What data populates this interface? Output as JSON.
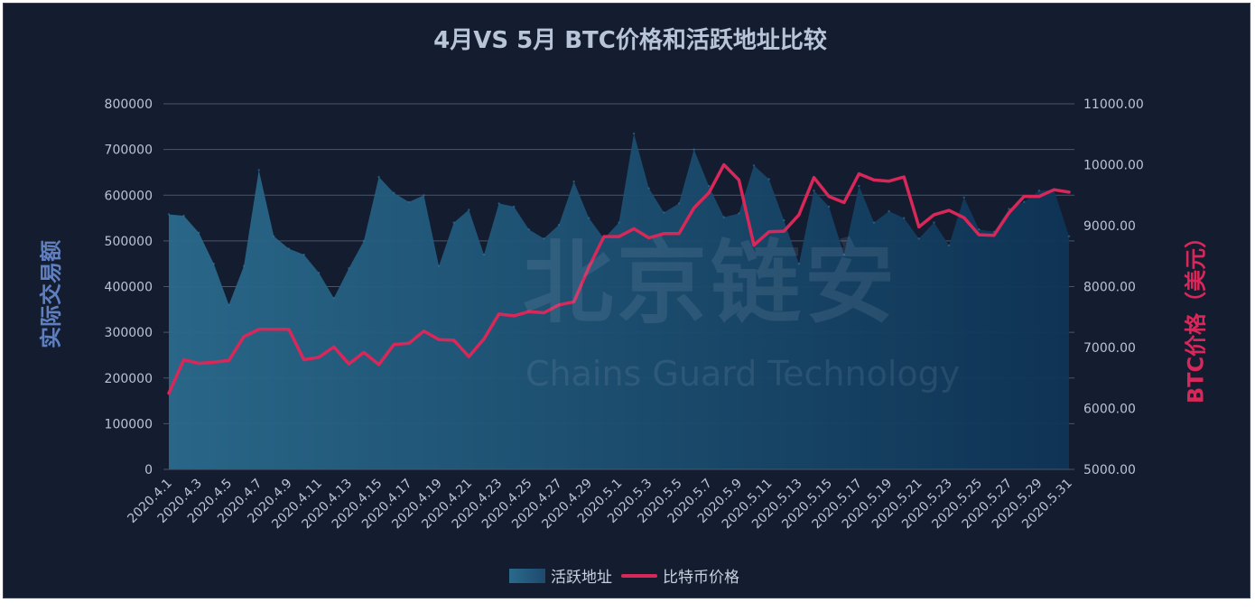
{
  "chart_data": {
    "type": "area",
    "title": "4月VS 5月 BTC价格和活跃地址比较",
    "ylabel_left": "实际交易额",
    "ylabel_right": "BTC价格（美元）",
    "ylim_left": [
      0,
      800000
    ],
    "ylim_right": [
      5000,
      11000
    ],
    "y_ticks_left": [
      "800000",
      "700000",
      "600000",
      "500000",
      "400000",
      "300000",
      "200000",
      "100000",
      "0"
    ],
    "y_ticks_right": [
      "11000.00",
      "10000.00",
      "9000.00",
      "8000.00",
      "7000.00",
      "6000.00",
      "5000.00"
    ],
    "categories": [
      "2020.4.1",
      "2020.4.2",
      "2020.4.3",
      "2020.4.4",
      "2020.4.5",
      "2020.4.6",
      "2020.4.7",
      "2020.4.8",
      "2020.4.9",
      "2020.4.10",
      "2020.4.11",
      "2020.4.12",
      "2020.4.13",
      "2020.4.14",
      "2020.4.15",
      "2020.4.16",
      "2020.4.17",
      "2020.4.18",
      "2020.4.19",
      "2020.4.20",
      "2020.4.21",
      "2020.4.22",
      "2020.4.23",
      "2020.4.24",
      "2020.4.25",
      "2020.4.26",
      "2020.4.27",
      "2020.4.28",
      "2020.4.29",
      "2020.4.30",
      "2020.5.1",
      "2020.5.2",
      "2020.5.3",
      "2020.5.4",
      "2020.5.5",
      "2020.5.6",
      "2020.5.7",
      "2020.5.8",
      "2020.5.9",
      "2020.5.10",
      "2020.5.11",
      "2020.5.12",
      "2020.5.13",
      "2020.5.14",
      "2020.5.15",
      "2020.5.16",
      "2020.5.17",
      "2020.5.18",
      "2020.5.19",
      "2020.5.20",
      "2020.5.21",
      "2020.5.22",
      "2020.5.23",
      "2020.5.24",
      "2020.5.25",
      "2020.5.26",
      "2020.5.27",
      "2020.5.28",
      "2020.5.29",
      "2020.5.30",
      "2020.5.31"
    ],
    "x_tick_labels": [
      "2020.4.1",
      "2020.4.3",
      "2020.4.5",
      "2020.4.7",
      "2020.4.9",
      "2020.4.11",
      "2020.4.13",
      "2020.4.15",
      "2020.4.17",
      "2020.4.19",
      "2020.4.21",
      "2020.4.23",
      "2020.4.25",
      "2020.4.27",
      "2020.4.29",
      "2020.5.1",
      "2020.5.3",
      "2020.5.5",
      "2020.5.7",
      "2020.5.9",
      "2020.5.11",
      "2020.5.13",
      "2020.5.15",
      "2020.5.17",
      "2020.5.19",
      "2020.5.21",
      "2020.5.23",
      "2020.5.25",
      "2020.5.27",
      "2020.5.29",
      "2020.5.31"
    ],
    "series": [
      {
        "name": "活跃地址",
        "type": "area",
        "axis": "left",
        "color": "#2a6a8c",
        "values": [
          558000,
          555000,
          518000,
          450000,
          360000,
          445000,
          655000,
          510000,
          483000,
          470000,
          430000,
          375000,
          440000,
          500000,
          640000,
          605000,
          585000,
          600000,
          445000,
          540000,
          568000,
          470000,
          582000,
          575000,
          525000,
          505000,
          535000,
          630000,
          550000,
          505000,
          540000,
          735000,
          615000,
          562000,
          582000,
          700000,
          620000,
          552000,
          560000,
          665000,
          635000,
          545000,
          450000,
          610000,
          575000,
          470000,
          620000,
          540000,
          565000,
          550000,
          505000,
          540000,
          490000,
          595000,
          525000,
          520000,
          570000,
          585000,
          610000,
          612000,
          510000
        ]
      },
      {
        "name": "比特币价格",
        "type": "line",
        "axis": "right",
        "color": "#d8285a",
        "values": [
          6250,
          6800,
          6740,
          6760,
          6790,
          7180,
          7300,
          7300,
          7300,
          6800,
          6840,
          7010,
          6730,
          6920,
          6720,
          7050,
          7070,
          7270,
          7130,
          7120,
          6850,
          7140,
          7550,
          7520,
          7590,
          7570,
          7700,
          7750,
          8320,
          8820,
          8820,
          8950,
          8800,
          8870,
          8870,
          9290,
          9540,
          10000,
          9750,
          8680,
          8900,
          8910,
          9180,
          9790,
          9480,
          9380,
          9850,
          9750,
          9730,
          9800,
          8980,
          9180,
          9250,
          9130,
          8850,
          8840,
          9210,
          9480,
          9480,
          9590,
          9550
        ]
      }
    ],
    "grid": true,
    "legend_position": "bottom-center"
  },
  "watermark": {
    "text_cn": "北京链安",
    "text_en": "Chains Guard Technology"
  },
  "colors": {
    "background": "#141c30",
    "area_fill_start": "#2a6a8c",
    "area_fill_end": "#0e3456",
    "line": "#d8285a",
    "grid": "#4a5468",
    "tick_text": "#b8c4d8"
  }
}
